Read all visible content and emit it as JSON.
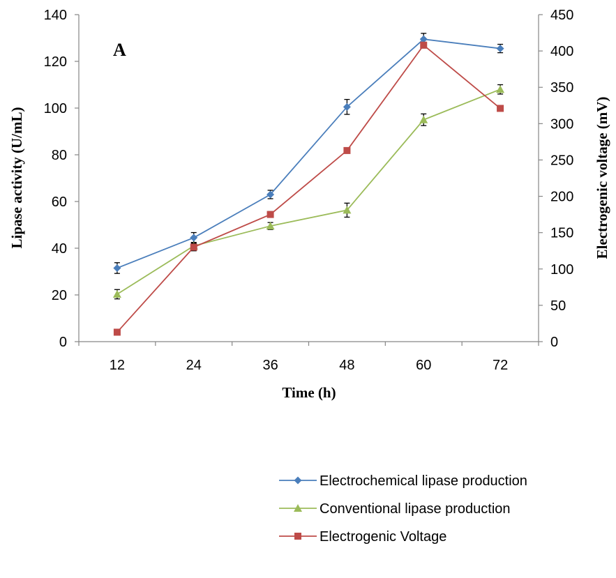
{
  "chart_data": {
    "type": "line",
    "panel_label": "A",
    "xlabel": "Time (h)",
    "ylabel_left": "Lipase  activity (U/mL)",
    "ylabel_right": "Electrogenic voltage (mV)",
    "categories": [
      "12",
      "24",
      "36",
      "48",
      "60",
      "72"
    ],
    "ylim_left": [
      0,
      140
    ],
    "yticks_left": [
      "0",
      "20",
      "40",
      "60",
      "80",
      "100",
      "120",
      "140"
    ],
    "ylim_right": [
      0,
      450
    ],
    "yticks_right": [
      "0",
      "50",
      "100",
      "150",
      "200",
      "250",
      "300",
      "350",
      "400",
      "450"
    ],
    "grid": false,
    "legend_position": "bottom-right",
    "series": [
      {
        "name": "Electrochemical lipase production",
        "axis": "left",
        "color": "#4a7ebb",
        "marker": "diamond",
        "values": [
          31.5,
          44.5,
          63,
          100.5,
          129.5,
          125.5
        ],
        "errors": [
          2.3,
          2.2,
          1.8,
          3.2,
          2.5,
          1.8
        ]
      },
      {
        "name": "Conventional lipase production",
        "axis": "left",
        "color": "#9bbb59",
        "marker": "triangle",
        "values": [
          20.3,
          41,
          49.5,
          56.3,
          95,
          108
        ],
        "errors": [
          2.0,
          1.5,
          1.5,
          3.0,
          2.5,
          2.0
        ]
      },
      {
        "name": "Electrogenic Voltage",
        "axis": "right",
        "color": "#be4b48",
        "marker": "square",
        "values": [
          13,
          130,
          175,
          263,
          408,
          321
        ],
        "errors": [
          3,
          5,
          4,
          3,
          4,
          3
        ]
      }
    ]
  }
}
